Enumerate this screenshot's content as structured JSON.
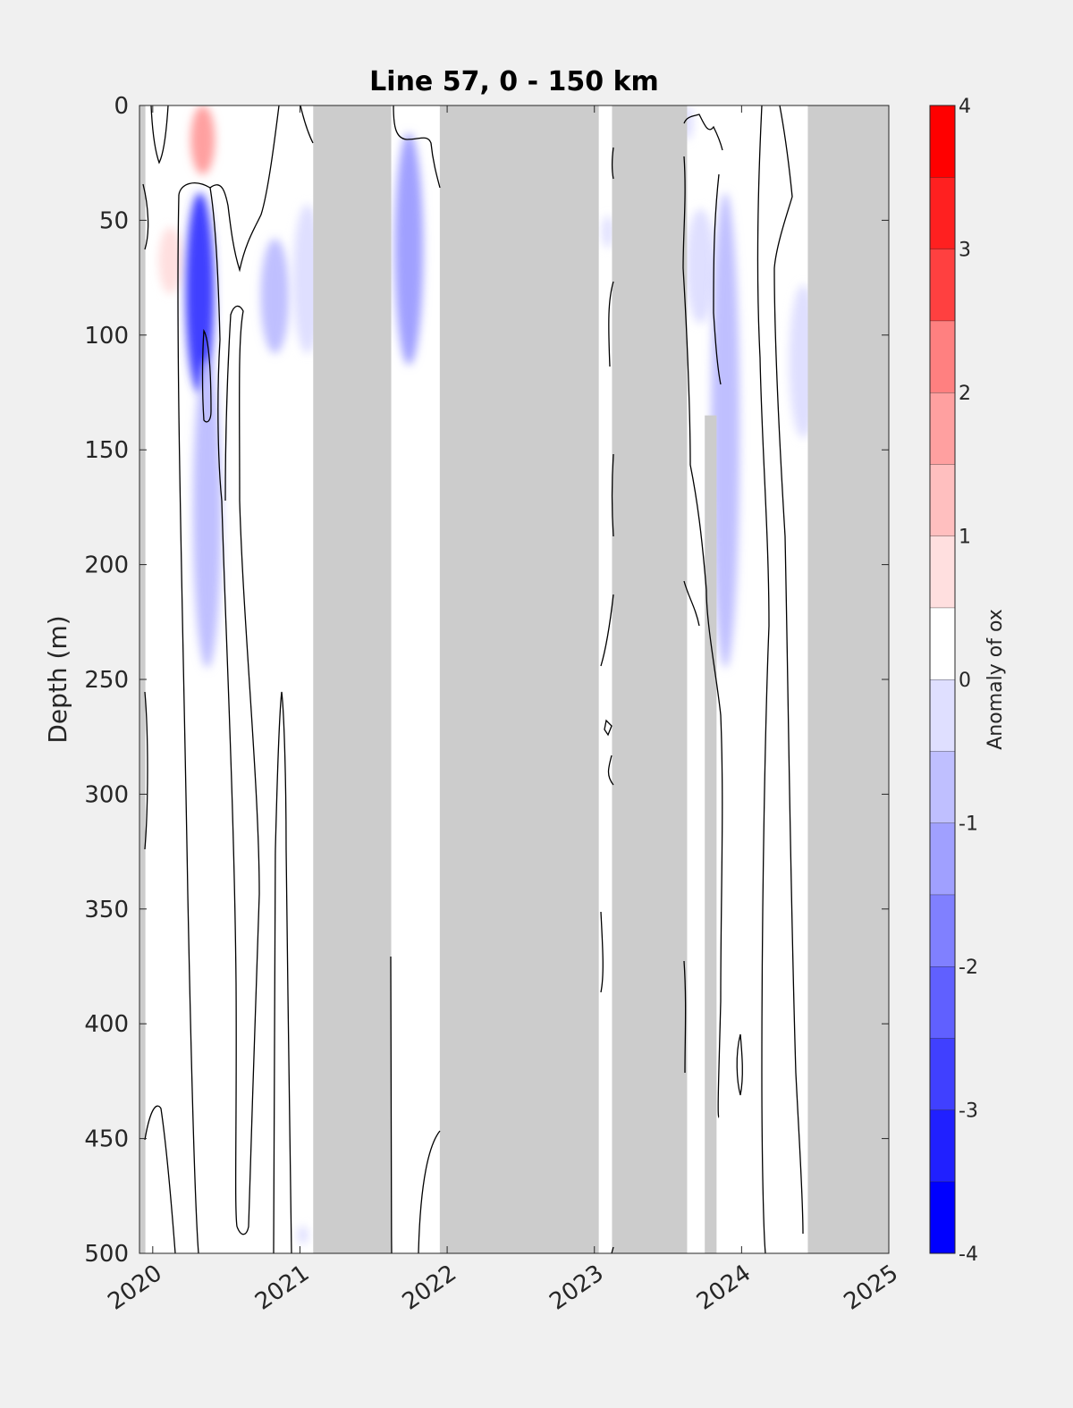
{
  "chart_data": {
    "type": "heatmap",
    "title": "Line 57, 0 - 150 km",
    "xlabel": "",
    "ylabel": "Depth (m)",
    "x_ticks": [
      "2020",
      "2021",
      "2022",
      "2023",
      "2024",
      "2025"
    ],
    "x_tick_values": [
      2020,
      2021,
      2022,
      2023,
      2024,
      2025
    ],
    "xlim": [
      2019.91,
      2025
    ],
    "y_ticks": [
      "0",
      "50",
      "100",
      "150",
      "200",
      "250",
      "300",
      "350",
      "400",
      "450",
      "500"
    ],
    "y_tick_values": [
      0,
      50,
      100,
      150,
      200,
      250,
      300,
      350,
      400,
      450,
      500
    ],
    "ylim": [
      0,
      500
    ],
    "y_reversed": true,
    "colorbar": {
      "label": "Anomaly of ox",
      "ticks": [
        "4",
        "3",
        "2",
        "1",
        "0",
        "-1",
        "-2",
        "-3",
        "-4"
      ],
      "tick_values": [
        4,
        3,
        2,
        1,
        0,
        -1,
        -2,
        -3,
        -4
      ],
      "range": [
        -4,
        4
      ],
      "step": 0.5,
      "level_colors": [
        "#0000ff",
        "#2020ff",
        "#4040ff",
        "#6060ff",
        "#8080ff",
        "#a0a0ff",
        "#bfbfff",
        "#dfdfff",
        "#ffffff",
        "#ffffff",
        "#ffdfdf",
        "#ffbfbf",
        "#ffa0a0",
        "#ff8080",
        "#ff4040",
        "#ff2020",
        "#ff0000"
      ]
    },
    "no_data_color": "#cccccc",
    "no_data_periods": [
      {
        "start": 2019.91,
        "end": 2019.95,
        "depth": [
          0,
          500
        ]
      },
      {
        "start": 2021.09,
        "end": 2021.62,
        "depth": [
          0,
          500
        ]
      },
      {
        "start": 2021.95,
        "end": 2023.03,
        "depth": [
          0,
          500
        ]
      },
      {
        "start": 2023.12,
        "end": 2023.63,
        "depth": [
          0,
          500
        ]
      },
      {
        "start": 2023.75,
        "end": 2023.83,
        "depth": [
          135,
          500
        ]
      },
      {
        "start": 2024.45,
        "end": 2025.0,
        "depth": [
          0,
          500
        ]
      }
    ],
    "anomaly_patches": [
      {
        "time": 2020.34,
        "depth_top": 0,
        "depth_bottom": 30,
        "anomaly": 2.0
      },
      {
        "time": 2020.12,
        "depth_top": 53,
        "depth_bottom": 82,
        "anomaly": 1.0
      },
      {
        "time": 2020.62,
        "depth_top": 0,
        "depth_bottom": 6,
        "anomaly": 0.7
      },
      {
        "time": 2020.32,
        "depth_top": 38,
        "depth_bottom": 125,
        "anomaly": -3.0
      },
      {
        "time": 2020.37,
        "depth_top": 110,
        "depth_bottom": 245,
        "anomaly": -1.0
      },
      {
        "time": 2020.83,
        "depth_top": 58,
        "depth_bottom": 108,
        "anomaly": -0.8
      },
      {
        "time": 2021.05,
        "depth_top": 43,
        "depth_bottom": 108,
        "anomaly": -0.7
      },
      {
        "time": 2021.74,
        "depth_top": 12,
        "depth_bottom": 113,
        "anomaly": -1.5
      },
      {
        "time": 2023.09,
        "depth_top": 48,
        "depth_bottom": 62,
        "anomaly": -0.7
      },
      {
        "time": 2023.63,
        "depth_top": 0,
        "depth_bottom": 15,
        "anomaly": -0.6
      },
      {
        "time": 2023.72,
        "depth_top": 45,
        "depth_bottom": 95,
        "anomaly": -0.7
      },
      {
        "time": 2023.89,
        "depth_top": 38,
        "depth_bottom": 245,
        "anomaly": -0.9
      },
      {
        "time": 2024.42,
        "depth_top": 78,
        "depth_bottom": 145,
        "anomaly": -0.7
      },
      {
        "time": 2021.02,
        "depth_top": 488,
        "depth_bottom": 496,
        "anomaly": -0.6
      }
    ],
    "contour_level": 0,
    "grid": false
  }
}
